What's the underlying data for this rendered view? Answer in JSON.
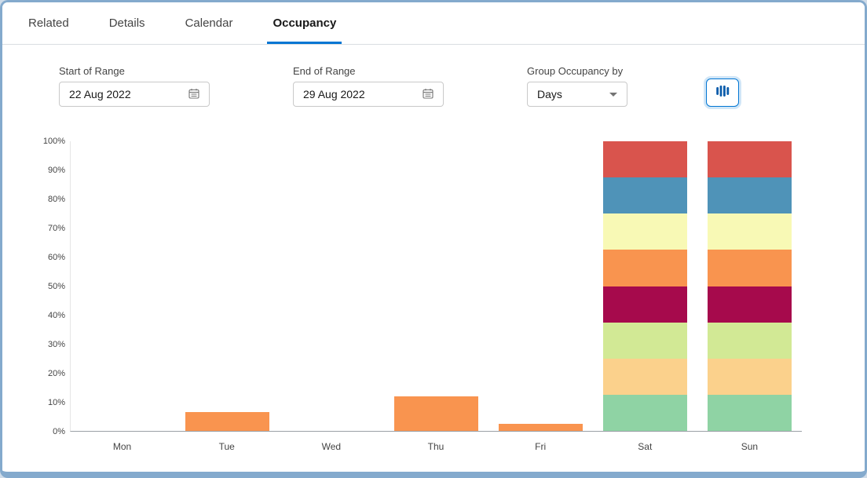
{
  "tabs": [
    {
      "label": "Related",
      "active": false
    },
    {
      "label": "Details",
      "active": false
    },
    {
      "label": "Calendar",
      "active": false
    },
    {
      "label": "Occupancy",
      "active": true
    }
  ],
  "controls": {
    "start": {
      "label": "Start of Range",
      "value": "22 Aug 2022",
      "icon": "calendar-icon"
    },
    "end": {
      "label": "End of Range",
      "value": "29 Aug 2022",
      "icon": "calendar-icon"
    },
    "group": {
      "label": "Group Occupancy by",
      "value": "Days",
      "icon": "chevron-down-icon"
    },
    "chart_button": {
      "icon": "bar-chart-icon"
    }
  },
  "colors": {
    "accent": "#0176d3",
    "tab_underline": "#0176d3",
    "frame_border": "#84aacd",
    "weekday_bar_orange": "#f9944f"
  },
  "chart_data": {
    "type": "bar",
    "stacked": true,
    "title": "",
    "xlabel": "",
    "ylabel": "",
    "ylim": [
      0,
      100
    ],
    "grid": false,
    "legend": "none",
    "yticks": [
      {
        "label": "0%",
        "value": 0
      },
      {
        "label": "10%",
        "value": 10
      },
      {
        "label": "20%",
        "value": 20
      },
      {
        "label": "30%",
        "value": 30
      },
      {
        "label": "40%",
        "value": 40
      },
      {
        "label": "50%",
        "value": 50
      },
      {
        "label": "60%",
        "value": 60
      },
      {
        "label": "70%",
        "value": 70
      },
      {
        "label": "80%",
        "value": 80
      },
      {
        "label": "90%",
        "value": 90
      },
      {
        "label": "100%",
        "value": 100
      }
    ],
    "categories": [
      "Mon",
      "Tue",
      "Wed",
      "Thu",
      "Fri",
      "Sat",
      "Sun"
    ],
    "bars": [
      {
        "category": "Mon",
        "segments": []
      },
      {
        "category": "Tue",
        "segments": [
          {
            "color": "#f9944f",
            "value": 6.5
          }
        ]
      },
      {
        "category": "Wed",
        "segments": []
      },
      {
        "category": "Thu",
        "segments": [
          {
            "color": "#f9944f",
            "value": 12
          }
        ]
      },
      {
        "category": "Fri",
        "segments": [
          {
            "color": "#f9944f",
            "value": 2.5
          }
        ]
      },
      {
        "category": "Sat",
        "segments": [
          {
            "color": "#8fd3a4",
            "value": 12.5
          },
          {
            "color": "#fbd18c",
            "value": 12.5
          },
          {
            "color": "#d2e995",
            "value": 12.5
          },
          {
            "color": "#a60a4c",
            "value": 12.5
          },
          {
            "color": "#f9944f",
            "value": 12.5
          },
          {
            "color": "#f8f9b5",
            "value": 12.5
          },
          {
            "color": "#4f93b8",
            "value": 12.5
          },
          {
            "color": "#d9544d",
            "value": 12.5
          }
        ]
      },
      {
        "category": "Sun",
        "segments": [
          {
            "color": "#8fd3a4",
            "value": 12.5
          },
          {
            "color": "#fbd18c",
            "value": 12.5
          },
          {
            "color": "#d2e995",
            "value": 12.5
          },
          {
            "color": "#a60a4c",
            "value": 12.5
          },
          {
            "color": "#f9944f",
            "value": 12.5
          },
          {
            "color": "#f8f9b5",
            "value": 12.5
          },
          {
            "color": "#4f93b8",
            "value": 12.5
          },
          {
            "color": "#d9544d",
            "value": 12.5
          }
        ]
      }
    ]
  }
}
